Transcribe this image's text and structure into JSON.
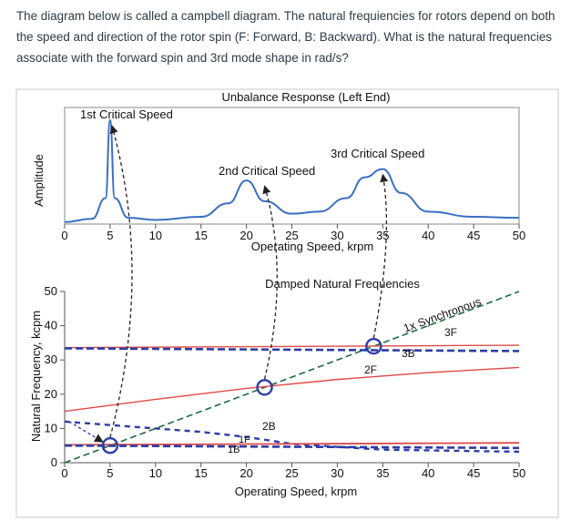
{
  "question": {
    "text": "The diagram below is called a campbell diagram. The natural frequiencies for rotors depend on both the speed and direction of the rotor spin (F: Forward, B: Backward). What is the natural frequencies associate with the forward spin and 3rd mode shape in rad/s?"
  },
  "figure": {
    "top_title": "Unbalance Response (Left End)",
    "top_ylabel": "Amplitude",
    "critical_labels": [
      "1st Critical Speed",
      "2nd Critical Speed",
      "3rd Critical Speed"
    ],
    "top_xlabel": "Operating Speed, krpm",
    "bottom_title": "Damped Natural Frequencies",
    "bottom_ylabel": "Natural Frequency, kcpm",
    "bottom_xlabel": "Operating Speed, krpm",
    "sync_label": "1x Synchronous",
    "mode_labels": {
      "f3": "3F",
      "b3": "3B",
      "f2": "2F",
      "b2": "2B",
      "f1": "1F",
      "b1": "1B"
    }
  },
  "chart_data": [
    {
      "type": "line",
      "title": "Unbalance Response (Left End)",
      "xlabel": "Operating Speed, krpm",
      "ylabel": "Amplitude",
      "xlim": [
        0,
        50
      ],
      "xticks": [
        0,
        5,
        10,
        15,
        20,
        25,
        30,
        35,
        40,
        45,
        50
      ],
      "series": [
        {
          "name": "",
          "x": [
            0,
            3,
            4.5,
            5,
            5.5,
            7,
            10,
            15,
            18,
            20,
            22,
            25,
            28,
            31,
            33,
            35,
            37,
            40,
            45,
            50
          ],
          "y": [
            0.02,
            0.05,
            0.25,
            1.0,
            0.25,
            0.06,
            0.04,
            0.07,
            0.2,
            0.42,
            0.22,
            0.1,
            0.12,
            0.25,
            0.45,
            0.53,
            0.3,
            0.12,
            0.07,
            0.06
          ]
        }
      ],
      "annotations": [
        "1st Critical Speed",
        "2nd Critical Speed",
        "3rd Critical Speed"
      ]
    },
    {
      "type": "line",
      "title": "Damped Natural Frequencies",
      "xlabel": "Operating Speed, krpm",
      "ylabel": "Natural Frequency, kcpm",
      "xlim": [
        0,
        50
      ],
      "ylim": [
        0,
        50
      ],
      "xticks": [
        0,
        5,
        10,
        15,
        20,
        25,
        30,
        35,
        40,
        45,
        50
      ],
      "yticks": [
        0,
        10,
        20,
        30,
        40,
        50
      ],
      "series": [
        {
          "name": "1x Synchronous",
          "x": [
            0,
            50
          ],
          "y": [
            0,
            50
          ]
        },
        {
          "name": "3F",
          "x": [
            0,
            50
          ],
          "y": [
            33.6,
            34.3
          ]
        },
        {
          "name": "3B",
          "x": [
            0,
            50
          ],
          "y": [
            33.4,
            32.6
          ]
        },
        {
          "name": "2F",
          "x": [
            0,
            10,
            20,
            30,
            40,
            50
          ],
          "y": [
            15,
            18.5,
            21.7,
            24.3,
            26.3,
            27.8
          ]
        },
        {
          "name": "2B",
          "x": [
            0,
            15,
            20,
            25,
            35,
            50
          ],
          "y": [
            12,
            9,
            7.5,
            5.5,
            3.8,
            3.2
          ]
        },
        {
          "name": "1F",
          "x": [
            0,
            50
          ],
          "y": [
            5.2,
            5.8
          ]
        },
        {
          "name": "1B",
          "x": [
            0,
            50
          ],
          "y": [
            5.0,
            4.3
          ]
        }
      ],
      "critical_points": [
        {
          "x": 5,
          "y": 5
        },
        {
          "x": 22,
          "y": 22
        },
        {
          "x": 34,
          "y": 34
        }
      ]
    }
  ]
}
